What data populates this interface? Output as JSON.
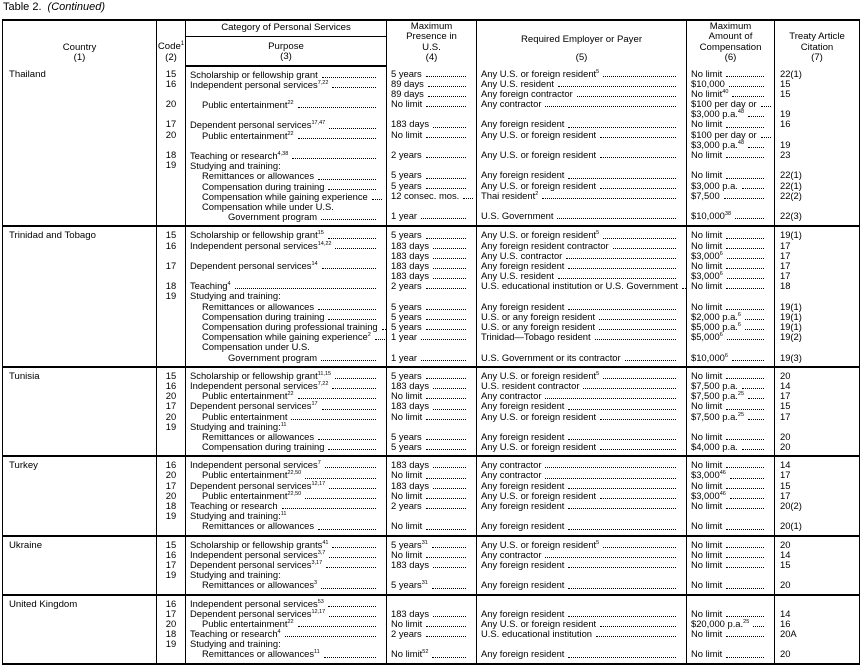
{
  "caption": {
    "table": "Table 2.",
    "note": "(Continued)"
  },
  "headers": {
    "country": "Country",
    "country_num": "(1)",
    "code": "Code",
    "code_sup": "1",
    "code_num": "(2)",
    "category": "Category of Personal Services",
    "purpose": "Purpose",
    "purpose_num": "(3)",
    "presence": "Maximum Presence in U.S.",
    "presence_num": "(4)",
    "employer": "Required Employer or Payer",
    "employer_num": "(5)",
    "comp": "Maximum Amount of Compensation",
    "comp_num": "(6)",
    "cite": "Treaty Article Citation",
    "cite_num": "(7)"
  },
  "countries": [
    {
      "name": "Thailand",
      "lines": [
        {
          "code": "15",
          "purpose": "Scholarship or fellowship grant",
          "ps": "",
          "lvl": 0,
          "presence": "5 years",
          "pr_s": "",
          "employer": "Any U.S. or foreign resident",
          "es": "5",
          "comp": "No limit",
          "cs": "",
          "cite": "22(1)"
        },
        {
          "code": "16",
          "purpose": "Independent personal services",
          "ps": "7,22",
          "lvl": 0,
          "presence": "89 days",
          "pr_s": "",
          "employer": "Any U.S. resident",
          "es": "",
          "comp": "$10,000",
          "cs": "",
          "cite": "15"
        },
        {
          "code": "",
          "purpose": "",
          "ps": "",
          "lvl": 0,
          "presence": "89 days",
          "pr_s": "",
          "employer": "Any foreign contractor",
          "es": "",
          "comp": "No limit",
          "cs": "40",
          "cite": "15"
        },
        {
          "code": "20",
          "purpose": "Public entertainment",
          "ps": "22",
          "lvl": 1,
          "presence": "No limit",
          "pr_s": "",
          "employer": "Any contractor",
          "es": "",
          "comp": "$100 per day or",
          "cs": "",
          "cite": ""
        },
        {
          "code": "",
          "purpose": "",
          "ps": "",
          "lvl": 0,
          "presence": "",
          "pr_s": "",
          "employer": "",
          "es": "",
          "comp": "$3,000 p.a.",
          "cs": "48",
          "cite": "19"
        },
        {
          "code": "17",
          "purpose": "Dependent personal services",
          "ps": "17,47",
          "lvl": 0,
          "presence": "183 days",
          "pr_s": "",
          "employer": "Any foreign resident",
          "es": "",
          "comp": "No limit",
          "cs": "",
          "cite": "16"
        },
        {
          "code": "20",
          "purpose": "Public entertainment",
          "ps": "22",
          "lvl": 1,
          "presence": "No limit",
          "pr_s": "",
          "employer": "Any U.S. or foreign resident",
          "es": "",
          "comp": "$100 per day or",
          "cs": "",
          "cite": ""
        },
        {
          "code": "",
          "purpose": "",
          "ps": "",
          "lvl": 0,
          "presence": "",
          "pr_s": "",
          "employer": "",
          "es": "",
          "comp": "$3,000 p.a.",
          "cs": "48",
          "cite": "19"
        },
        {
          "code": "18",
          "purpose": "Teaching or research",
          "ps": "4,38",
          "lvl": 0,
          "presence": "2 years",
          "pr_s": "",
          "employer": "Any U.S. or foreign resident",
          "es": "",
          "comp": "No limit",
          "cs": "",
          "cite": "23"
        },
        {
          "code": "19",
          "purpose": "Studying and training:",
          "ps": "",
          "lvl": 0,
          "presence": "",
          "pr_s": "",
          "employer": "",
          "es": "",
          "comp": "",
          "cs": "",
          "cite": ""
        },
        {
          "code": "",
          "purpose": "Remittances or allowances",
          "ps": "",
          "lvl": 1,
          "presence": "5 years",
          "pr_s": "",
          "employer": "Any foreign resident",
          "es": "",
          "comp": "No limit",
          "cs": "",
          "cite": "22(1)"
        },
        {
          "code": "",
          "purpose": "Compensation during training",
          "ps": "",
          "lvl": 1,
          "presence": "5 years",
          "pr_s": "",
          "employer": "Any U.S. or foreign resident",
          "es": "",
          "comp": "$3,000 p.a.",
          "cs": "",
          "cite": "22(1)"
        },
        {
          "code": "",
          "purpose": "Compensation while gaining experience",
          "ps": "",
          "lvl": 1,
          "presence": "12 consec. mos.",
          "pr_s": "",
          "employer": "Thai resident",
          "es": "2",
          "comp": "$7,500",
          "cs": "",
          "cite": "22(2)"
        },
        {
          "code": "",
          "purpose": "Compensation while under U.S.",
          "ps": "",
          "lvl": 1,
          "presence": "",
          "pr_s": "",
          "employer": "",
          "es": "",
          "comp": "",
          "cs": "",
          "cite": ""
        },
        {
          "code": "",
          "purpose": "Government program",
          "ps": "",
          "lvl": 2,
          "presence": "1 year",
          "pr_s": "",
          "employer": "U.S. Government",
          "es": "",
          "comp": "$10,000",
          "cs": "38",
          "cite": "22(3)"
        }
      ]
    },
    {
      "name": "Trinidad and Tobago",
      "lines": [
        {
          "code": "15",
          "purpose": "Scholarship or fellowship grant",
          "ps": "15",
          "lvl": 0,
          "presence": "5 years",
          "pr_s": "",
          "employer": "Any U.S. or foreign resident",
          "es": "5",
          "comp": "No limit",
          "cs": "",
          "cite": "19(1)"
        },
        {
          "code": "16",
          "purpose": "Independent personal services",
          "ps": "14,22",
          "lvl": 0,
          "presence": "183 days",
          "pr_s": "",
          "employer": "Any foreign resident contractor",
          "es": "",
          "comp": "No limit",
          "cs": "",
          "cite": "17"
        },
        {
          "code": "",
          "purpose": "",
          "ps": "",
          "lvl": 0,
          "presence": "183 days",
          "pr_s": "",
          "employer": "Any U.S. contractor",
          "es": "",
          "comp": "$3,000",
          "cs": "6",
          "cite": "17"
        },
        {
          "code": "17",
          "purpose": "Dependent personal services",
          "ps": "14",
          "lvl": 0,
          "presence": "183 days",
          "pr_s": "",
          "employer": "Any foreign resident",
          "es": "",
          "comp": "No limit",
          "cs": "",
          "cite": "17"
        },
        {
          "code": "",
          "purpose": "",
          "ps": "",
          "lvl": 0,
          "presence": "183 days",
          "pr_s": "",
          "employer": "Any U.S. resident",
          "es": "",
          "comp": "$3,000",
          "cs": "6",
          "cite": "17"
        },
        {
          "code": "18",
          "purpose": "Teaching",
          "ps": "4",
          "lvl": 0,
          "presence": "2 years",
          "pr_s": "",
          "employer": "U.S. educational institution or U.S. Government",
          "es": "",
          "comp": "No limit",
          "cs": "",
          "cite": "18"
        },
        {
          "code": "19",
          "purpose": "Studying and training:",
          "ps": "",
          "lvl": 0,
          "presence": "",
          "pr_s": "",
          "employer": "",
          "es": "",
          "comp": "",
          "cs": "",
          "cite": ""
        },
        {
          "code": "",
          "purpose": "Remittances or allowances",
          "ps": "",
          "lvl": 1,
          "presence": "5 years",
          "pr_s": "",
          "employer": "Any foreign resident",
          "es": "",
          "comp": "No limit",
          "cs": "",
          "cite": "19(1)"
        },
        {
          "code": "",
          "purpose": "Compensation during training",
          "ps": "",
          "lvl": 1,
          "presence": "5 years",
          "pr_s": "",
          "employer": "U.S. or any foreign resident",
          "es": "",
          "comp": "$2,000 p.a.",
          "cs": "6",
          "cite": "19(1)"
        },
        {
          "code": "",
          "purpose": "Compensation during professional training",
          "ps": "",
          "lvl": 1,
          "presence": "5 years",
          "pr_s": "",
          "employer": "U.S. or any foreign resident",
          "es": "",
          "comp": "$5,000 p.a.",
          "cs": "6",
          "cite": "19(1)"
        },
        {
          "code": "",
          "purpose": "Compensation while gaining experience",
          "ps": "2",
          "lvl": 1,
          "presence": "1 year",
          "pr_s": "",
          "employer": "Trinidad—Tobago resident",
          "es": "",
          "comp": "$5,000",
          "cs": "6",
          "cite": "19(2)"
        },
        {
          "code": "",
          "purpose": "Compensation under U.S.",
          "ps": "",
          "lvl": 1,
          "presence": "",
          "pr_s": "",
          "employer": "",
          "es": "",
          "comp": "",
          "cs": "",
          "cite": ""
        },
        {
          "code": "",
          "purpose": "Government program",
          "ps": "",
          "lvl": 2,
          "presence": "1 year",
          "pr_s": "",
          "employer": "U.S. Government or its contractor",
          "es": "",
          "comp": "$10,000",
          "cs": "6",
          "cite": "19(3)"
        }
      ]
    },
    {
      "name": "Tunisia",
      "lines": [
        {
          "code": "15",
          "purpose": "Scholarship or fellowship grant",
          "ps": "11,15",
          "lvl": 0,
          "presence": "5 years",
          "pr_s": "",
          "employer": "Any U.S. or foreign resident",
          "es": "5",
          "comp": "No limit",
          "cs": "",
          "cite": "20"
        },
        {
          "code": "16",
          "purpose": "Independent personal services",
          "ps": "7,22",
          "lvl": 0,
          "presence": "183 days",
          "pr_s": "",
          "employer": "U.S. resident contractor",
          "es": "",
          "comp": "$7,500 p.a.",
          "cs": "",
          "cite": "14"
        },
        {
          "code": "20",
          "purpose": "Public entertainment",
          "ps": "22",
          "lvl": 1,
          "presence": "No limit",
          "pr_s": "",
          "employer": "Any contractor",
          "es": "",
          "comp": "$7,500 p.a.",
          "cs": "25",
          "cite": "17"
        },
        {
          "code": "17",
          "purpose": "Dependent personal services",
          "ps": "17",
          "lvl": 0,
          "presence": "183 days",
          "pr_s": "",
          "employer": "Any foreign resident",
          "es": "",
          "comp": "No limit",
          "cs": "",
          "cite": "15"
        },
        {
          "code": "20",
          "purpose": "Public entertainment",
          "ps": "",
          "lvl": 1,
          "presence": "No limit",
          "pr_s": "",
          "employer": "Any U.S. or foreign resident",
          "es": "",
          "comp": "$7,500 p.a.",
          "cs": "25",
          "cite": "17"
        },
        {
          "code": "19",
          "purpose": "Studying and training:",
          "ps": "11",
          "lvl": 0,
          "presence": "",
          "pr_s": "",
          "employer": "",
          "es": "",
          "comp": "",
          "cs": "",
          "cite": ""
        },
        {
          "code": "",
          "purpose": "Remittances or allowances",
          "ps": "",
          "lvl": 1,
          "presence": "5 years",
          "pr_s": "",
          "employer": "Any foreign resident",
          "es": "",
          "comp": "No limit",
          "cs": "",
          "cite": "20"
        },
        {
          "code": "",
          "purpose": "Compensation during training",
          "ps": "",
          "lvl": 1,
          "presence": "5 years",
          "pr_s": "",
          "employer": "Any U.S. or foreign resident",
          "es": "",
          "comp": "$4,000 p.a.",
          "cs": "",
          "cite": "20"
        }
      ]
    },
    {
      "name": "Turkey",
      "lines": [
        {
          "code": "16",
          "purpose": "Independent personal services",
          "ps": "7",
          "lvl": 0,
          "presence": "183 days",
          "pr_s": "",
          "employer": "Any contractor",
          "es": "",
          "comp": "No limit",
          "cs": "",
          "cite": "14"
        },
        {
          "code": "20",
          "purpose": "Public entertainment",
          "ps": "22,50",
          "lvl": 1,
          "presence": "No limit",
          "pr_s": "",
          "employer": "Any contractor",
          "es": "",
          "comp": "$3,000",
          "cs": "46",
          "cite": "17"
        },
        {
          "code": "17",
          "purpose": "Dependent personal services",
          "ps": "12,17",
          "lvl": 0,
          "presence": "183 days",
          "pr_s": "",
          "employer": "Any foreign resident",
          "es": "",
          "comp": "No limit",
          "cs": "",
          "cite": "15"
        },
        {
          "code": "20",
          "purpose": "Public entertainment",
          "ps": "22,50",
          "lvl": 1,
          "presence": "No limit",
          "pr_s": "",
          "employer": "Any U.S. or foreign resident",
          "es": "",
          "comp": "$3,000",
          "cs": "46",
          "cite": "17"
        },
        {
          "code": "18",
          "purpose": "Teaching or research",
          "ps": "",
          "lvl": 0,
          "presence": "2 years",
          "pr_s": "",
          "employer": "Any foreign resident",
          "es": "",
          "comp": "No limit",
          "cs": "",
          "cite": "20(2)"
        },
        {
          "code": "19",
          "purpose": "Studying and training:",
          "ps": "11",
          "lvl": 0,
          "presence": "",
          "pr_s": "",
          "employer": "",
          "es": "",
          "comp": "",
          "cs": "",
          "cite": ""
        },
        {
          "code": "",
          "purpose": "Remittances or allowances",
          "ps": "",
          "lvl": 1,
          "presence": "No limit",
          "pr_s": "",
          "employer": "Any foreign resident",
          "es": "",
          "comp": "No limit",
          "cs": "",
          "cite": "20(1)"
        }
      ]
    },
    {
      "name": "Ukraine",
      "lines": [
        {
          "code": "15",
          "purpose": "Scholarship or fellowship grants",
          "ps": "41",
          "lvl": 0,
          "presence": "5 years",
          "pr_s": "31",
          "employer": "Any U.S. or foreign resident",
          "es": "5",
          "comp": "No limit",
          "cs": "",
          "cite": "20"
        },
        {
          "code": "16",
          "purpose": "Independent personal services",
          "ps": "3,7",
          "lvl": 0,
          "presence": "No limit",
          "pr_s": "",
          "employer": "Any contractor",
          "es": "",
          "comp": "No limit",
          "cs": "",
          "cite": "14"
        },
        {
          "code": "17",
          "purpose": "Dependent personal services",
          "ps": "3,17",
          "lvl": 0,
          "presence": "183 days",
          "pr_s": "",
          "employer": "Any foreign resident",
          "es": "",
          "comp": "No limit",
          "cs": "",
          "cite": "15"
        },
        {
          "code": "19",
          "purpose": "Studying and training:",
          "ps": "",
          "lvl": 0,
          "presence": "",
          "pr_s": "",
          "employer": "",
          "es": "",
          "comp": "",
          "cs": "",
          "cite": ""
        },
        {
          "code": "",
          "purpose": "Remittances or allowances",
          "ps": "3",
          "lvl": 1,
          "presence": "5 years",
          "pr_s": "31",
          "employer": "Any foreign resident",
          "es": "",
          "comp": "No limit",
          "cs": "",
          "cite": "20"
        }
      ]
    },
    {
      "name": "United Kingdom",
      "lines": [
        {
          "code": "16",
          "purpose": "Independent personal services",
          "ps": "53",
          "lvl": 0,
          "presence": "",
          "pr_s": "",
          "employer": "",
          "es": "",
          "comp": "",
          "cs": "",
          "cite": ""
        },
        {
          "code": "17",
          "purpose": "Dependent personal services",
          "ps": "12,17",
          "lvl": 0,
          "presence": "183 days",
          "pr_s": "",
          "employer": "Any foreign resident",
          "es": "",
          "comp": "No limit",
          "cs": "",
          "cite": "14"
        },
        {
          "code": "20",
          "purpose": "Public entertainment",
          "ps": "22",
          "lvl": 1,
          "presence": "No limit",
          "pr_s": "",
          "employer": "Any U.S. or foreign resident",
          "es": "",
          "comp": "$20,000 p.a.",
          "cs": "25",
          "cite": "16"
        },
        {
          "code": "18",
          "purpose": "Teaching or research",
          "ps": "4",
          "lvl": 0,
          "presence": "2 years",
          "pr_s": "",
          "employer": "U.S. educational institution",
          "es": "",
          "comp": "No limit",
          "cs": "",
          "cite": "20A"
        },
        {
          "code": "19",
          "purpose": "Studying and training:",
          "ps": "",
          "lvl": 0,
          "presence": "",
          "pr_s": "",
          "employer": "",
          "es": "",
          "comp": "",
          "cs": "",
          "cite": ""
        },
        {
          "code": "",
          "purpose": "Remittances or allowances",
          "ps": "11",
          "lvl": 1,
          "presence": "No limit",
          "pr_s": "52",
          "employer": "Any foreign resident",
          "es": "",
          "comp": "No limit",
          "cs": "",
          "cite": "20"
        }
      ]
    }
  ]
}
